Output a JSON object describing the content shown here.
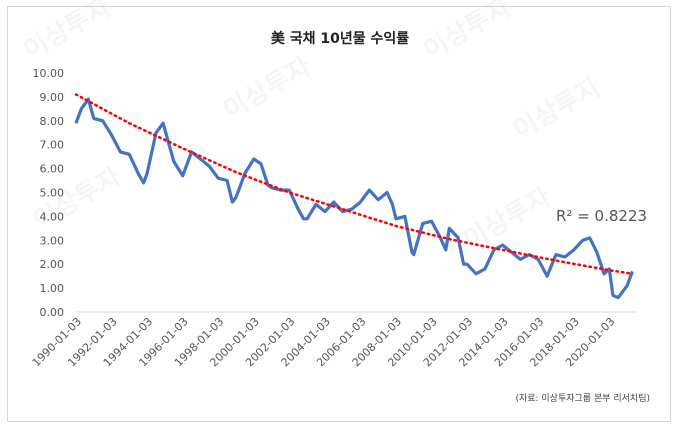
{
  "title": "美 국채 10년물 수익률",
  "source": "(자료: 이상투자그룹 본부 리서치팀)",
  "watermark": "이상투자",
  "chart_data": {
    "type": "line",
    "xlabel": "",
    "ylabel": "",
    "ylim": [
      0,
      10
    ],
    "yticks": [
      "0.00",
      "1.00",
      "2.00",
      "3.00",
      "4.00",
      "5.00",
      "6.00",
      "7.00",
      "8.00",
      "9.00",
      "10.00"
    ],
    "xticks": [
      "1990-01-03",
      "1992-01-03",
      "1994-01-03",
      "1996-01-03",
      "1998-01-03",
      "2000-01-03",
      "2002-01-03",
      "2004-01-03",
      "2006-01-03",
      "2008-01-03",
      "2010-01-03",
      "2012-01-03",
      "2014-01-03",
      "2016-01-03",
      "2018-01-03",
      "2020-01-03"
    ],
    "series": [
      {
        "color": "#4472c4",
        "x": [
          1990.0,
          1990.3,
          1990.7,
          1991.0,
          1991.5,
          1992.0,
          1992.5,
          1993.0,
          1993.5,
          1993.8,
          1994.0,
          1994.5,
          1994.9,
          1995.5,
          1996.0,
          1996.5,
          1997.0,
          1997.5,
          1998.0,
          1998.5,
          1998.8,
          1999.0,
          1999.5,
          2000.0,
          2000.4,
          2000.8,
          2001.0,
          2001.5,
          2002.0,
          2002.5,
          2002.8,
          2003.0,
          2003.5,
          2004.0,
          2004.5,
          2005.0,
          2005.5,
          2006.0,
          2006.5,
          2007.0,
          2007.5,
          2007.8,
          2008.0,
          2008.5,
          2008.9,
          2009.0,
          2009.5,
          2010.0,
          2010.5,
          2010.8,
          2011.0,
          2011.5,
          2011.8,
          2012.0,
          2012.5,
          2013.0,
          2013.5,
          2014.0,
          2014.5,
          2015.0,
          2015.5,
          2016.0,
          2016.5,
          2017.0,
          2017.5,
          2018.0,
          2018.5,
          2018.9,
          2019.3,
          2019.7,
          2020.0,
          2020.2,
          2020.5,
          2021.0,
          2021.3
        ],
        "values": [
          7.9,
          8.5,
          8.9,
          8.1,
          8.0,
          7.4,
          6.7,
          6.6,
          5.8,
          5.4,
          5.8,
          7.5,
          7.9,
          6.3,
          5.7,
          6.7,
          6.4,
          6.1,
          5.6,
          5.5,
          4.6,
          4.8,
          5.8,
          6.4,
          6.2,
          5.3,
          5.2,
          5.1,
          5.1,
          4.3,
          3.9,
          3.9,
          4.5,
          4.2,
          4.6,
          4.2,
          4.3,
          4.6,
          5.1,
          4.7,
          5.0,
          4.5,
          3.9,
          4.0,
          2.5,
          2.4,
          3.7,
          3.8,
          3.1,
          2.6,
          3.5,
          3.1,
          2.0,
          2.0,
          1.6,
          1.8,
          2.6,
          2.8,
          2.5,
          2.2,
          2.4,
          2.2,
          1.5,
          2.4,
          2.3,
          2.6,
          3.0,
          3.1,
          2.5,
          1.6,
          1.8,
          0.7,
          0.6,
          1.1,
          1.7
        ]
      },
      {
        "color": "#ff0000",
        "type": "trendline",
        "x": [
          1990,
          1993,
          1996,
          1999,
          2002,
          2005,
          2008,
          2011,
          2014,
          2017,
          2020,
          2021.3
        ],
        "values": [
          9.1,
          7.9,
          6.85,
          5.85,
          5.0,
          4.3,
          3.6,
          3.05,
          2.6,
          2.15,
          1.75,
          1.6
        ]
      }
    ],
    "annotation": "R² = 0.8223",
    "grid": false,
    "legend": "none"
  }
}
